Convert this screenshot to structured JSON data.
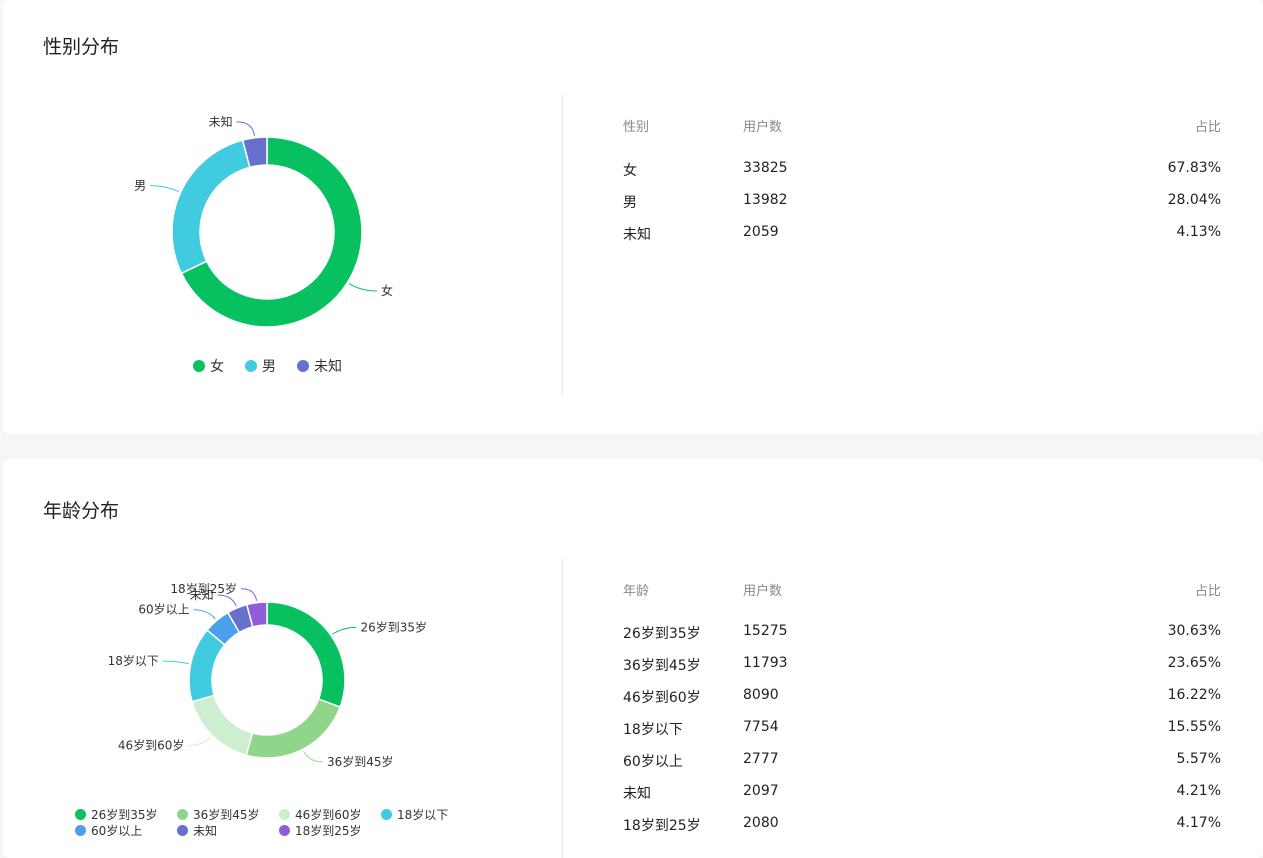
{
  "gender": {
    "title": "性别分布",
    "table_headers": [
      "性别",
      "用户数",
      "占比"
    ],
    "rows": [
      {
        "label": "女",
        "count": "33825",
        "pct": "67.83%"
      },
      {
        "label": "男",
        "count": "13982",
        "pct": "28.04%"
      },
      {
        "label": "未知",
        "count": "2059",
        "pct": "4.13%"
      }
    ]
  },
  "age": {
    "title": "年龄分布",
    "table_headers": [
      "年龄",
      "用户数",
      "占比"
    ],
    "rows": [
      {
        "label": "26岁到35岁",
        "count": "15275",
        "pct": "30.63%"
      },
      {
        "label": "36岁到45岁",
        "count": "11793",
        "pct": "23.65%"
      },
      {
        "label": "46岁到60岁",
        "count": "8090",
        "pct": "16.22%"
      },
      {
        "label": "18岁以下",
        "count": "7754",
        "pct": "15.55%"
      },
      {
        "label": "60岁以上",
        "count": "2777",
        "pct": "5.57%"
      },
      {
        "label": "未知",
        "count": "2097",
        "pct": "4.21%"
      },
      {
        "label": "18岁到25岁",
        "count": "2080",
        "pct": "4.17%"
      }
    ]
  },
  "chart_data": [
    {
      "type": "pie",
      "donut": true,
      "title": "性别分布",
      "legend_position": "bottom",
      "categories": [
        "女",
        "男",
        "未知"
      ],
      "values": [
        33825,
        13982,
        2059
      ],
      "colors": [
        "#07c160",
        "#40cbe0",
        "#6670cd"
      ]
    },
    {
      "type": "pie",
      "donut": true,
      "title": "年龄分布",
      "legend_position": "bottom",
      "categories": [
        "26岁到35岁",
        "36岁到45岁",
        "46岁到60岁",
        "18岁以下",
        "60岁以上",
        "未知",
        "18岁到25岁"
      ],
      "values": [
        15275,
        11793,
        8090,
        7754,
        2777,
        2097,
        2080
      ],
      "colors": [
        "#07c160",
        "#8fd68a",
        "#cdeecf",
        "#40cbe0",
        "#4c9feb",
        "#6670cd",
        "#8e5ed8"
      ]
    }
  ]
}
